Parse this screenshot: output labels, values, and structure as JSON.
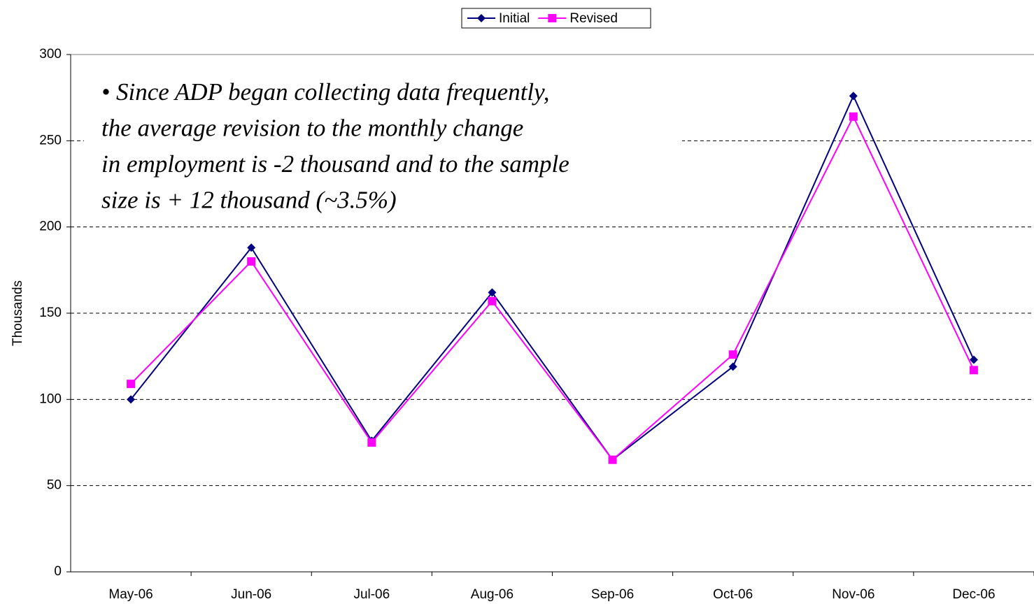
{
  "chart_data": {
    "type": "line",
    "categories": [
      "May-06",
      "Jun-06",
      "Jul-06",
      "Aug-06",
      "Sep-06",
      "Oct-06",
      "Nov-06",
      "Dec-06"
    ],
    "series": [
      {
        "name": "Initial",
        "color": "#000080",
        "marker": "diamond",
        "values": [
          100,
          188,
          76,
          162,
          65,
          119,
          276,
          123
        ]
      },
      {
        "name": "Revised",
        "color": "#ff00ff",
        "marker": "square",
        "values": [
          109,
          180,
          75,
          157,
          65,
          126,
          264,
          117
        ]
      }
    ],
    "ylabel": "Thousands",
    "ylim": [
      0,
      300
    ],
    "yticks": [
      0,
      50,
      100,
      150,
      200,
      250,
      300
    ],
    "grid": true,
    "legend": "top",
    "annotation": [
      "• Since ADP began collecting data frequently,",
      "the average revision to the monthly change",
      "in employment is -2 thousand and to the sample",
      "size is + 12 thousand (~3.5%)"
    ]
  }
}
